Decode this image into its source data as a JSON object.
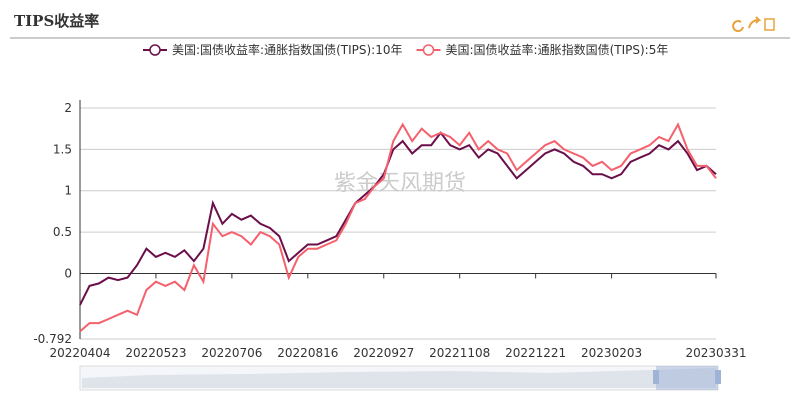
{
  "chart_data": {
    "type": "line",
    "title": "TIPS收益率",
    "watermark": "紫金天风期货",
    "categories": [
      "20220404",
      null,
      null,
      null,
      null,
      null,
      null,
      null,
      "20220523",
      null,
      null,
      null,
      null,
      null,
      null,
      null,
      "20220706",
      null,
      null,
      null,
      null,
      null,
      null,
      null,
      "20220816",
      null,
      null,
      null,
      null,
      null,
      null,
      null,
      "20220927",
      null,
      null,
      null,
      null,
      null,
      null,
      null,
      "20221108",
      null,
      null,
      null,
      null,
      null,
      null,
      null,
      "20221221",
      null,
      null,
      null,
      null,
      null,
      null,
      null,
      "20230203",
      null,
      null,
      null,
      null,
      null,
      null,
      null,
      null,
      null,
      null,
      "20230331"
    ],
    "series": [
      {
        "name": "美国:国债收益率:通胀指数国债(TIPS):10年",
        "color": "#6b0f4b",
        "values": [
          -0.38,
          -0.15,
          -0.12,
          -0.05,
          -0.08,
          -0.05,
          0.1,
          0.3,
          0.2,
          0.25,
          0.2,
          0.28,
          0.15,
          0.3,
          0.85,
          0.6,
          0.72,
          0.65,
          0.7,
          0.6,
          0.55,
          0.45,
          0.15,
          0.25,
          0.35,
          0.35,
          0.4,
          0.45,
          0.65,
          0.85,
          0.95,
          1.05,
          1.2,
          1.5,
          1.6,
          1.45,
          1.55,
          1.55,
          1.7,
          1.55,
          1.5,
          1.55,
          1.4,
          1.5,
          1.45,
          1.3,
          1.15,
          1.25,
          1.35,
          1.45,
          1.5,
          1.45,
          1.35,
          1.3,
          1.2,
          1.2,
          1.15,
          1.2,
          1.35,
          1.4,
          1.45,
          1.55,
          1.5,
          1.6,
          1.45,
          1.25,
          1.3,
          1.2
        ]
      },
      {
        "name": "美国:国债收益率:通胀指数国债(TIPS):5年",
        "color": "#f4606c",
        "values": [
          -0.7,
          -0.6,
          -0.6,
          -0.55,
          -0.5,
          -0.45,
          -0.5,
          -0.2,
          -0.1,
          -0.15,
          -0.1,
          -0.2,
          0.1,
          -0.1,
          0.6,
          0.45,
          0.5,
          0.45,
          0.35,
          0.5,
          0.45,
          0.35,
          -0.05,
          0.2,
          0.3,
          0.3,
          0.35,
          0.4,
          0.6,
          0.85,
          0.9,
          1.05,
          1.15,
          1.6,
          1.8,
          1.6,
          1.75,
          1.65,
          1.7,
          1.65,
          1.55,
          1.7,
          1.5,
          1.6,
          1.5,
          1.45,
          1.25,
          1.35,
          1.45,
          1.55,
          1.6,
          1.5,
          1.45,
          1.4,
          1.3,
          1.35,
          1.25,
          1.3,
          1.45,
          1.5,
          1.55,
          1.65,
          1.6,
          1.8,
          1.5,
          1.3,
          1.3,
          1.15
        ]
      }
    ],
    "ylim": [
      -0.792,
      2
    ],
    "yticks": [
      -0.792,
      0,
      0.5,
      1,
      1.5,
      2
    ],
    "grid": true
  }
}
